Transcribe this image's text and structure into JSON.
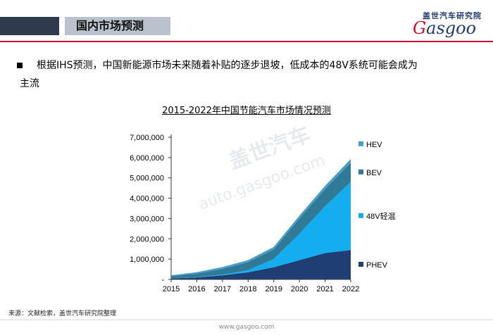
{
  "header": {
    "title": "国内市场预测"
  },
  "logo": {
    "cn": "盖世汽车研究院",
    "en_g": "G",
    "en_rest": "asgoo"
  },
  "bullet": {
    "line1": "根据IHS预测，中国新能源市场未来随着补贴的逐步退坡，低成本的48V系统可能会成为",
    "line2": "主流"
  },
  "chart_data": {
    "type": "area",
    "stacked": true,
    "title": "2015-2022年中国节能汽车市场情况预测",
    "x": [
      "2015",
      "2016",
      "2017",
      "2018",
      "2019",
      "2020",
      "2021",
      "2022"
    ],
    "yticks": [
      "-",
      "1,000,000",
      "2,000,000",
      "3,000,000",
      "4,000,000",
      "5,000,000",
      "6,000,000",
      "7,000,000"
    ],
    "ylim": [
      0,
      7000000
    ],
    "legend_position": "right",
    "series": [
      {
        "name": "PHEV",
        "color": "#1f3e73",
        "values": [
          50000,
          100000,
          200000,
          350000,
          600000,
          950000,
          1300000,
          1450000
        ]
      },
      {
        "name": "48V轻混",
        "color": "#14aef0",
        "values": [
          5000,
          15000,
          40000,
          100000,
          400000,
          1300000,
          2300000,
          3350000
        ]
      },
      {
        "name": "BEV",
        "color": "#2f7a96",
        "values": [
          100000,
          170000,
          280000,
          400000,
          480000,
          750000,
          850000,
          950000
        ]
      },
      {
        "name": "HEV",
        "color": "#4a9dc4",
        "values": [
          50000,
          70000,
          90000,
          100000,
          120000,
          140000,
          160000,
          180000
        ]
      }
    ]
  },
  "watermark": {
    "cn": "盖世汽车",
    "url": "auto.gasgoo.com"
  },
  "source": "来源：文献检索，盖世汽车研究院整理",
  "footer": "www.gasgoo.com"
}
